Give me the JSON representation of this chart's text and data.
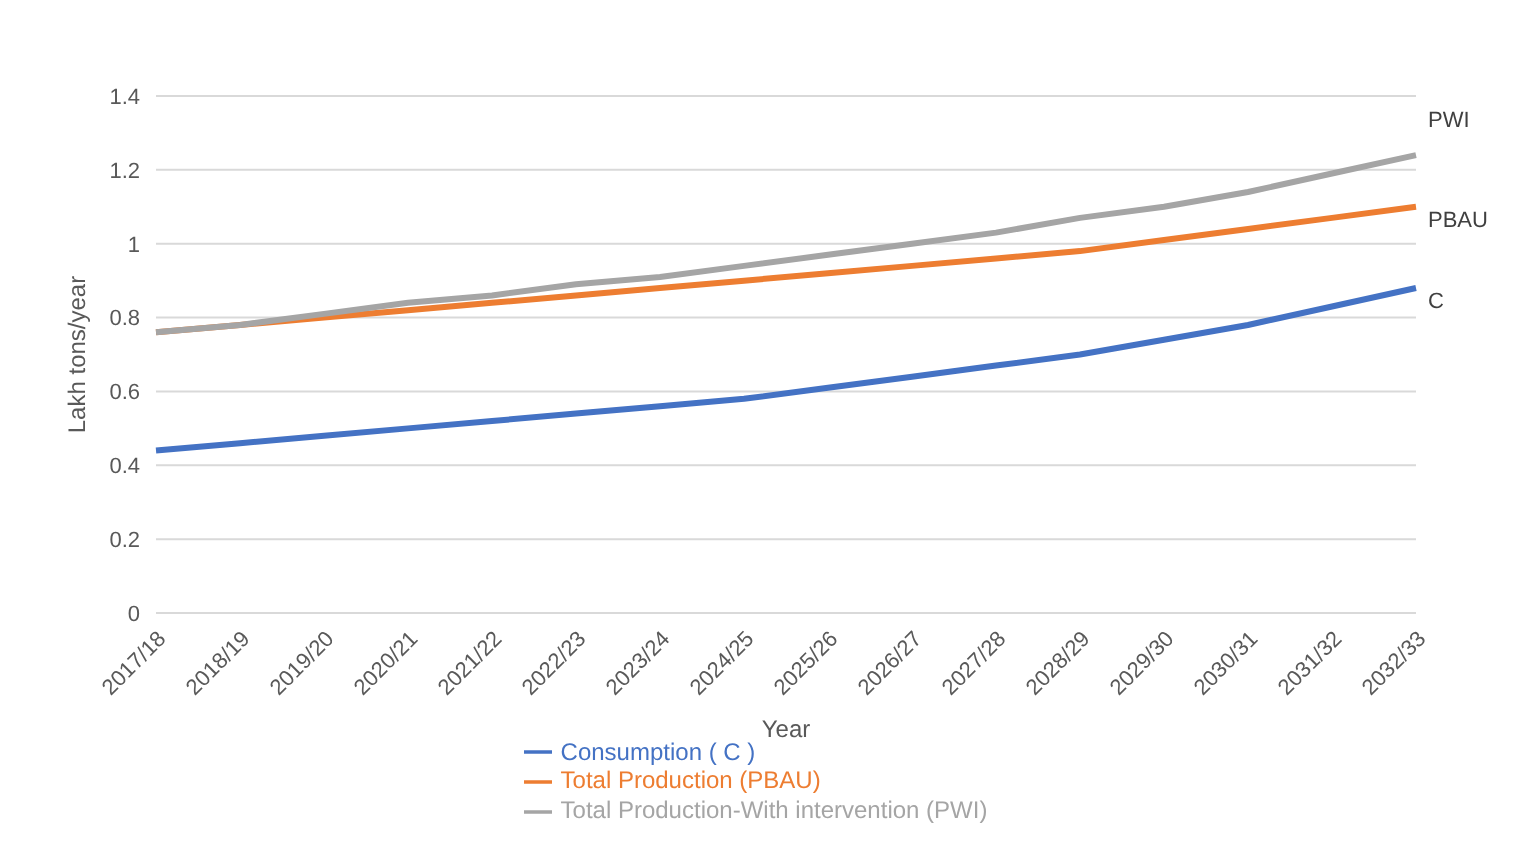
{
  "chart_data": {
    "type": "line",
    "xlabel": "Year",
    "ylabel": "Lakh tons/year",
    "categories": [
      "2017/18",
      "2018/19",
      "2019/20",
      "2020/21",
      "2021/22",
      "2022/23",
      "2023/24",
      "2024/25",
      "2025/26",
      "2026/27",
      "2027/28",
      "2028/29",
      "2029/30",
      "2030/31",
      "2031/32",
      "2032/33"
    ],
    "series": [
      {
        "name": "Consumption ( C )",
        "color": "#4472c4",
        "values": [
          0.44,
          0.46,
          0.48,
          0.5,
          0.52,
          0.54,
          0.56,
          0.58,
          0.61,
          0.64,
          0.67,
          0.7,
          0.74,
          0.78,
          0.83,
          0.88
        ]
      },
      {
        "name": "Total Production (PBAU)",
        "color": "#ed7d31",
        "values": [
          0.76,
          0.78,
          0.8,
          0.82,
          0.84,
          0.86,
          0.88,
          0.9,
          0.92,
          0.94,
          0.96,
          0.98,
          1.01,
          1.04,
          1.07,
          1.1
        ]
      },
      {
        "name": "Total Production-With intervention (PWI)",
        "color": "#a5a5a5",
        "values": [
          0.76,
          0.78,
          0.81,
          0.84,
          0.86,
          0.89,
          0.91,
          0.94,
          0.97,
          1.0,
          1.03,
          1.07,
          1.1,
          1.14,
          1.19,
          1.24
        ]
      }
    ],
    "annotations": [
      {
        "text": "PWI",
        "x": "2032/33",
        "y": 1.24
      },
      {
        "text": "PBAU",
        "x": "2032/33",
        "y": 1.1
      },
      {
        "text": "C",
        "x": "2032/33",
        "y": 0.88
      }
    ],
    "ylim": [
      0,
      1.4
    ],
    "yticks": [
      0,
      0.2,
      0.4,
      0.6,
      0.8,
      1,
      1.2,
      1.4
    ],
    "grid": "y",
    "legend": "bottom",
    "marker": "none",
    "line_style": "solid"
  }
}
